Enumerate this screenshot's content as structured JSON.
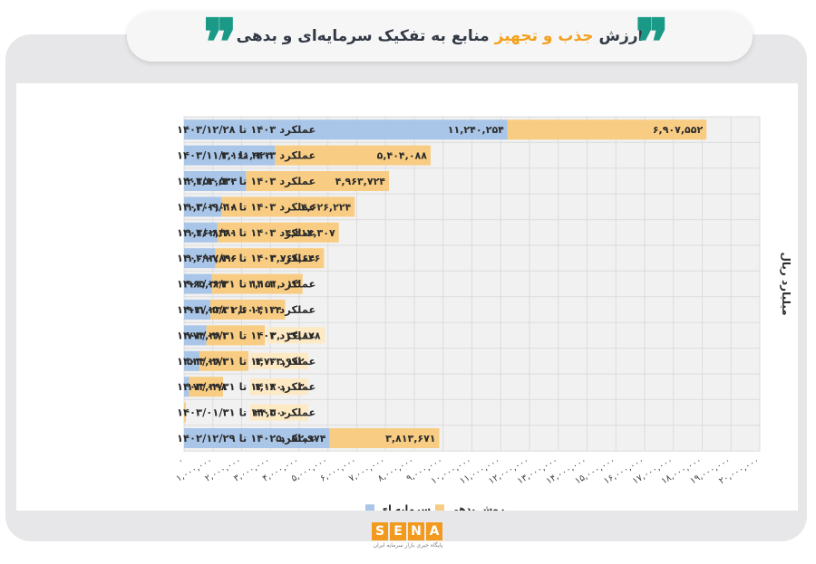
{
  "header": {
    "title_part1": "ارزش",
    "title_highlight": "جذب و تجهیز",
    "title_part2": "منابع به تفکیک سرمایه‌ای و بدهی"
  },
  "logo": {
    "letters": [
      "S",
      "E",
      "N",
      "A"
    ],
    "subtitle": "پایگاه خبری بازار سرمایه ایران",
    "color": "#f29a1e"
  },
  "colors": {
    "equity": "#a9c6e8",
    "debt": "#f8cd83",
    "accent": "#1a9a86",
    "title_highlight": "#f3a01c"
  },
  "chart_data": {
    "type": "bar",
    "orientation": "horizontal",
    "stacked": true,
    "ylabel": "میلیارد ریال",
    "xlim": [
      0,
      20000000
    ],
    "x_ticks": [
      "۰",
      "۱,۰۰۰,۰۰۰",
      "۲,۰۰۰,۰۰۰",
      "۳,۰۰۰,۰۰۰",
      "۴,۰۰۰,۰۰۰",
      "۵,۰۰۰,۰۰۰",
      "۶,۰۰۰,۰۰۰",
      "۷,۰۰۰,۰۰۰",
      "۸,۰۰۰,۰۰۰",
      "۹,۰۰۰,۰۰۰",
      "۱۰,۰۰۰,۰۰۰",
      "۱۱,۰۰۰,۰۰۰",
      "۱۲,۰۰۰,۰۰۰",
      "۱۳,۰۰۰,۰۰۰",
      "۱۴,۰۰۰,۰۰۰",
      "۱۵,۰۰۰,۰۰۰",
      "۱۶,۰۰۰,۰۰۰",
      "۱۷,۰۰۰,۰۰۰",
      "۱۸,۰۰۰,۰۰۰",
      "۱۹,۰۰۰,۰۰۰",
      "۲۰,۰۰۰,۰۰۰"
    ],
    "grid": true,
    "legend_position": "bottom",
    "categories": [
      "عملکرد ۱۴۰۳ تا ۱۴۰۳/۱۲/۲۸",
      "عملکرد ۱۴۰۳ تا ۱۴۰۳/۱۱/۳۰",
      "عملکرد ۱۴۰۳ تا ۱۴۰۳/۱۰/۳۰",
      "عملکرد ۱۴۰۳ تا ۱۴۰۳/۰۹/۳۰",
      "عملکرد ۱۴۰۳ تا ۱۴۰۳/۰۸/۳۰",
      "عملکرد ۱۴۰۳ تا ۱۴۰۳/۰۷/۳۰",
      "عملکرد ۱۴۰۳ تا ۱۴۰۳/۰۶/۳۱",
      "عملکرد ۱۴۰۳ تا ۱۴۰۳/۰۵/۳۱",
      "عملکرد ۱۴۰۳ تا ۱۴۰۳/۰۴/۳۱",
      "عملکرد ۱۴۰۳ تا ۱۴۰۳/۰۳/۳۱",
      "عملکرد ۱۴۰۳ تا ۱۴۰۳/۰۲/۳۱",
      "عملکرد ۱۴۰۳ تا ۱۴۰۳/۰۱/۳۱",
      "عملکرد ۱۴۰۲ تا ۱۴۰۲/۱۲/۲۹"
    ],
    "series": [
      {
        "name": "سرمایه ای",
        "values": [
          11240254,
          3161923,
          2154524,
          1303018,
          1162481,
          1093896,
          965324,
          911238,
          774481,
          534281,
          173398,
          0,
          5052974
        ],
        "labels": [
          "۱۱,۲۴۰,۲۵۴",
          "۳,۱۶۱,۹۲۳",
          "۲,۱۵۴,۵۲۴",
          "۱,۳۰۳,۰۱۸",
          "۱,۱۶۲,۴۸۱",
          "۱,۰۹۳,۸۹۶",
          "۹۶۵,۳۲۴",
          "۹۱۱,۲۳۸",
          "۷۷۴,۴۸۱",
          "۵۳۴,۲۸۱",
          "۱۷۳,۳۹۸",
          "",
          "۵,۰۵۲,۹۷۴"
        ]
      },
      {
        "name": "روش بدهی",
        "values": [
          6907552,
          5404088,
          4963724,
          4626224,
          4214307,
          3768646,
          3151012,
          2600104,
          2036878,
          1703992,
          1180003,
          24500,
          3813671
        ],
        "labels": [
          "۶,۹۰۷,۵۵۲",
          "۵,۴۰۴,۰۸۸",
          "۴,۹۶۳,۷۲۴",
          "۴,۶۲۶,۲۲۴",
          "۴,۲۱۴,۳۰۷",
          "۳,۷۶۸,۶۴۶",
          "۳,۱۵۱,۰۱۲",
          "۲,۶۰۰,۱۰۴",
          "۲,۰۳۶,۸۷۸",
          "۱,۷۰۳,۹۹۲",
          "۱,۱۸۰,۰۰۳",
          "۲۴,۵۰۰",
          "۳,۸۱۳,۶۷۱"
        ]
      }
    ]
  }
}
